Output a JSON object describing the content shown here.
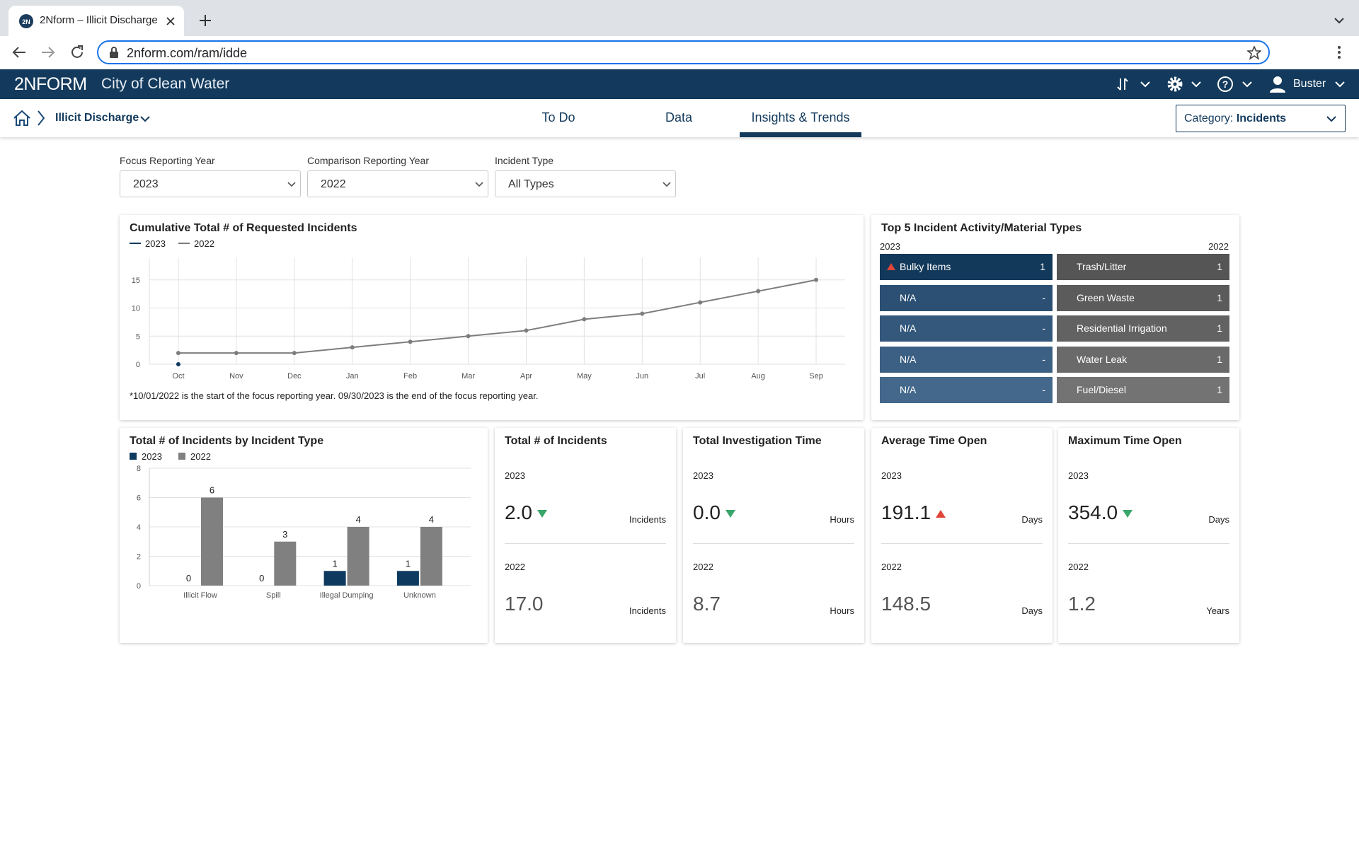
{
  "browser": {
    "tab_title": "2Nform – Illicit Discharge",
    "url": "2nform.com/ram/idde"
  },
  "header": {
    "logo": "2NFORM",
    "organization": "City of Clean Water",
    "user": "Buster"
  },
  "nav": {
    "breadcrumb": "Illicit Discharge",
    "tabs": [
      "To Do",
      "Data",
      "Insights & Trends"
    ],
    "active_tab": 2,
    "category_label": "Category:",
    "category_value": "Incidents"
  },
  "filters": [
    {
      "label": "Focus Reporting Year",
      "value": "2023"
    },
    {
      "label": "Comparison Reporting Year",
      "value": "2022"
    },
    {
      "label": "Incident Type",
      "value": "All Types"
    }
  ],
  "line_chart": {
    "type": "line",
    "title": "Cumulative Total # of Requested Incidents",
    "categories": [
      "Oct",
      "Nov",
      "Dec",
      "Jan",
      "Feb",
      "Mar",
      "Apr",
      "May",
      "Jun",
      "Jul",
      "Aug",
      "Sep"
    ],
    "series": [
      {
        "name": "2023",
        "color": "#0e3a5f",
        "values": [
          0,
          null,
          null,
          null,
          null,
          null,
          null,
          null,
          null,
          null,
          null,
          null
        ]
      },
      {
        "name": "2022",
        "color": "#7d7d7d",
        "values": [
          2,
          2,
          2,
          3,
          4,
          5,
          6,
          8,
          9,
          11,
          13,
          15
        ]
      }
    ],
    "ylim": [
      0,
      19
    ],
    "yticks": [
      0,
      5,
      10,
      15
    ],
    "grid": true,
    "footnote": "*10/01/2022 is the start of the focus reporting year. 09/30/2023 is the end of the focus reporting year."
  },
  "bar_chart": {
    "type": "bar",
    "title": "Total # of Incidents by Incident Type",
    "categories": [
      "Illicit Flow",
      "Spill",
      "Illegal Dumping",
      "Unknown"
    ],
    "series": [
      {
        "name": "2023",
        "color": "#0e3a5f",
        "values": [
          0,
          0,
          1,
          1
        ]
      },
      {
        "name": "2022",
        "color": "#808080",
        "values": [
          6,
          3,
          4,
          4
        ]
      }
    ],
    "ylim": [
      0,
      8
    ],
    "yticks": [
      0,
      2,
      4,
      6,
      8
    ],
    "grid": true
  },
  "top_types": {
    "title": "Top 5 Incident Activity/Material Types",
    "focus_year": "2023",
    "comparison_year": "2022",
    "focus": [
      {
        "name": "Bulky Items",
        "value": 1,
        "trend": "up"
      },
      {
        "name": "N/A",
        "value": "-"
      },
      {
        "name": "N/A",
        "value": "-"
      },
      {
        "name": "N/A",
        "value": "-"
      },
      {
        "name": "N/A",
        "value": "-"
      }
    ],
    "comparison": [
      {
        "name": "Trash/Litter",
        "value": 1
      },
      {
        "name": "Green Waste",
        "value": 1
      },
      {
        "name": "Residential Irrigation",
        "value": 1
      },
      {
        "name": "Water Leak",
        "value": 1
      },
      {
        "name": "Fuel/Diesel",
        "value": 1
      }
    ]
  },
  "kpis": [
    {
      "title": "Total # of Incidents",
      "focus_year": "2023",
      "focus_value": "2.0",
      "focus_unit": "Incidents",
      "trend": "down",
      "comparison_year": "2022",
      "comparison_value": "17.0",
      "comparison_unit": "Incidents"
    },
    {
      "title": "Total Investigation Time",
      "focus_year": "2023",
      "focus_value": "0.0",
      "focus_unit": "Hours",
      "trend": "down",
      "comparison_year": "2022",
      "comparison_value": "8.7",
      "comparison_unit": "Hours"
    },
    {
      "title": "Average Time Open",
      "focus_year": "2023",
      "focus_value": "191.1",
      "focus_unit": "Days",
      "trend": "up",
      "comparison_year": "2022",
      "comparison_value": "148.5",
      "comparison_unit": "Days"
    },
    {
      "title": "Maximum Time Open",
      "focus_year": "2023",
      "focus_value": "354.0",
      "focus_unit": "Days",
      "trend": "down",
      "comparison_year": "2022",
      "comparison_value": "1.2",
      "comparison_unit": "Years"
    }
  ]
}
